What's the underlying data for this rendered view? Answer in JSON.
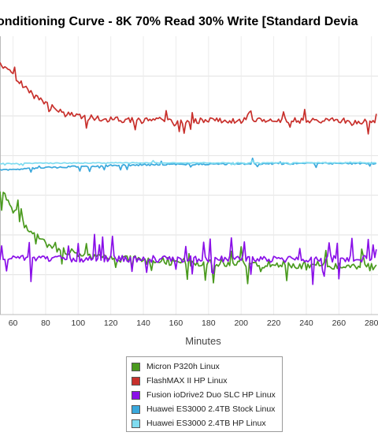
{
  "chart_data": {
    "type": "line",
    "title": "onditioning Curve - 8K 70% Read 30% Write [Standard Devia",
    "xlabel": "Minutes",
    "ylabel": "",
    "x_ticks": [
      "60",
      "80",
      "100",
      "120",
      "140",
      "160",
      "180",
      "200",
      "220",
      "240",
      "260",
      "280"
    ],
    "xlim": [
      52,
      284
    ],
    "grid": true,
    "legend_position": "bottom",
    "series": [
      {
        "name": "Micron P320h Linux",
        "color": "#4a9a1e",
        "base": [
          [
            52,
            0.565
          ],
          [
            56,
            0.58
          ],
          [
            60,
            0.63
          ],
          [
            68,
            0.685
          ],
          [
            76,
            0.73
          ],
          [
            84,
            0.765
          ],
          [
            92,
            0.77
          ],
          [
            100,
            0.78
          ],
          [
            120,
            0.795
          ],
          [
            140,
            0.805
          ],
          [
            160,
            0.81
          ],
          [
            200,
            0.818
          ],
          [
            240,
            0.822
          ],
          [
            270,
            0.825
          ],
          [
            282,
            0.83
          ]
        ],
        "noise": 0.028,
        "spike_rate": 0.08,
        "spike_size": 0.045,
        "seed": 11
      },
      {
        "name": "FlashMAX II HP Linux",
        "color": "#c8302c",
        "base": [
          [
            52,
            0.1
          ],
          [
            60,
            0.14
          ],
          [
            70,
            0.2
          ],
          [
            80,
            0.245
          ],
          [
            90,
            0.275
          ],
          [
            100,
            0.29
          ],
          [
            120,
            0.3
          ],
          [
            160,
            0.305
          ],
          [
            220,
            0.303
          ],
          [
            282,
            0.305
          ]
        ],
        "noise": 0.022,
        "spike_rate": 0.06,
        "spike_size": 0.03,
        "seed": 23
      },
      {
        "name": "Fusion ioDrive2 Duo SLC HP Linux",
        "color": "#8a10e8",
        "base": [
          [
            52,
            0.81
          ],
          [
            60,
            0.8
          ],
          [
            70,
            0.8
          ],
          [
            100,
            0.8
          ],
          [
            160,
            0.8
          ],
          [
            220,
            0.8
          ],
          [
            282,
            0.8
          ]
        ],
        "noise": 0.025,
        "spike_rate": 0.14,
        "spike_size": 0.06,
        "seed": 37
      },
      {
        "name": "Huawei ES3000 2.4TB Stock Linux",
        "color": "#3aa8dc",
        "base": [
          [
            52,
            0.48
          ],
          [
            70,
            0.475
          ],
          [
            90,
            0.47
          ],
          [
            110,
            0.466
          ],
          [
            140,
            0.462
          ],
          [
            170,
            0.46
          ],
          [
            200,
            0.458
          ],
          [
            240,
            0.457
          ],
          [
            282,
            0.457
          ]
        ],
        "noise": 0.006,
        "spike_rate": 0.05,
        "spike_size": 0.012,
        "seed": 51
      },
      {
        "name": "Huawei ES3000 2.4TB HP Linux",
        "color": "#7fdcf0",
        "base": [
          [
            52,
            0.458
          ],
          [
            80,
            0.456
          ],
          [
            120,
            0.455
          ],
          [
            160,
            0.455
          ],
          [
            220,
            0.455
          ],
          [
            282,
            0.455
          ]
        ],
        "noise": 0.003,
        "spike_rate": 0.03,
        "spike_size": 0.006,
        "seed": 67
      }
    ]
  }
}
